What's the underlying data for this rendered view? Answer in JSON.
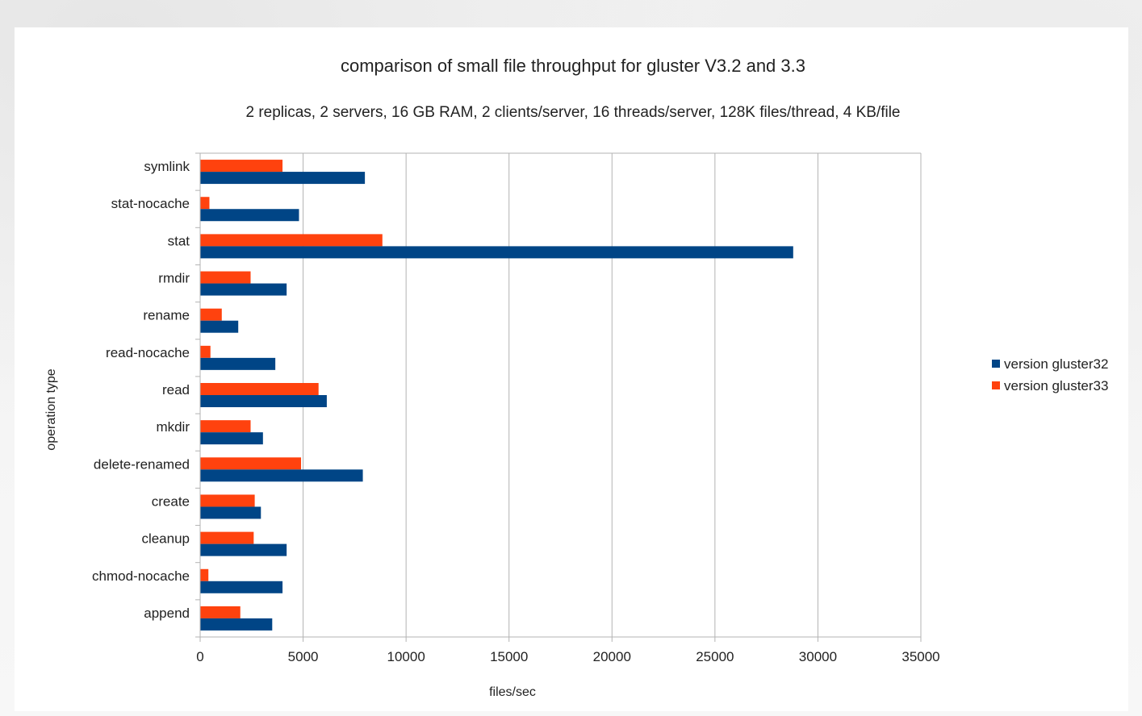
{
  "chart_data": {
    "type": "bar",
    "orientation": "horizontal",
    "title": "comparison of small file throughput for gluster V3.2 and 3.3",
    "subtitle": "2 replicas, 2 servers, 16 GB RAM, 2 clients/server, 16 threads/server, 128K files/thread, 4 KB/file",
    "xlabel": "files/sec",
    "ylabel": "operation type",
    "xlim": [
      0,
      35000
    ],
    "xticks": [
      "0",
      "5000",
      "10000",
      "15000",
      "20000",
      "25000",
      "30000",
      "35000"
    ],
    "grid": true,
    "legend_position": "right",
    "categories": [
      "symlink",
      "stat-nocache",
      "stat",
      "rmdir",
      "rename",
      "read-nocache",
      "read",
      "mkdir",
      "delete-renamed",
      "create",
      "cleanup",
      "chmod-nocache",
      "append"
    ],
    "series": [
      {
        "name": "version gluster32",
        "color": "#004586",
        "values": [
          8000,
          4800,
          28800,
          4200,
          1850,
          3650,
          6150,
          3050,
          7900,
          2950,
          4200,
          4000,
          3500
        ]
      },
      {
        "name": "version gluster33",
        "color": "#ff420e",
        "values": [
          4000,
          450,
          8850,
          2450,
          1050,
          500,
          5750,
          2450,
          4900,
          2650,
          2600,
          400,
          1950
        ]
      }
    ]
  }
}
